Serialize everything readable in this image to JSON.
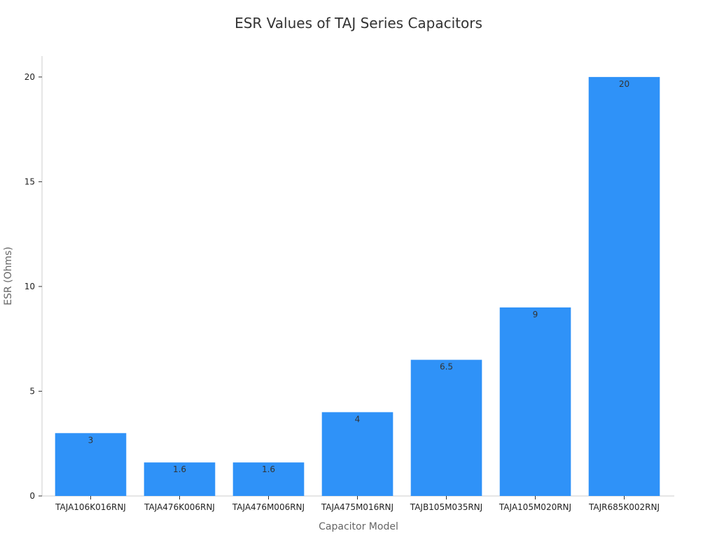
{
  "chart_data": {
    "type": "bar",
    "title": "ESR Values of TAJ Series Capacitors",
    "xlabel": "Capacitor Model",
    "ylabel": "ESR (Ohms)",
    "categories": [
      "TAJA106K016RNJ",
      "TAJA476K006RNJ",
      "TAJA476M006RNJ",
      "TAJA475M016RNJ",
      "TAJB105M035RNJ",
      "TAJA105M020RNJ",
      "TAJR685K002RNJ"
    ],
    "values": [
      3,
      1.6,
      1.6,
      4,
      6.5,
      9,
      20
    ],
    "value_labels": [
      "3",
      "1.6",
      "1.6",
      "4",
      "6.5",
      "9",
      "20"
    ],
    "ylim": [
      0,
      21
    ],
    "yticks": [
      0,
      5,
      10,
      15,
      20
    ],
    "ytick_labels": [
      "0",
      "5",
      "10",
      "15",
      "20"
    ],
    "bar_color": "#2f92f8",
    "grid": false,
    "legend": "none"
  }
}
